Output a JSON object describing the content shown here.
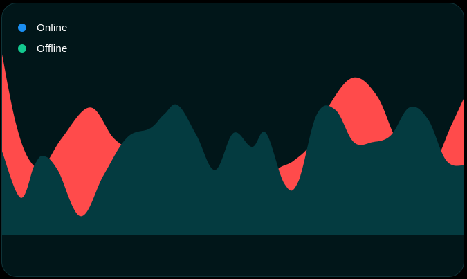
{
  "legend": [
    {
      "label": "Online",
      "color": "#1b8ff2"
    },
    {
      "label": "Offline",
      "color": "#13c98f"
    }
  ],
  "colors": {
    "card_bg": "#011619",
    "front_area": "#043b40",
    "back_area": "#ff4b4b"
  },
  "chart_data": {
    "type": "area",
    "grid": false,
    "legend_position": "top-left",
    "ylim": [
      0,
      100
    ],
    "series": [
      {
        "color": "#ff4b4b",
        "points": [
          [
            0,
            78
          ],
          [
            3,
            48
          ],
          [
            6,
            32
          ],
          [
            9,
            30
          ],
          [
            13,
            42
          ],
          [
            19,
            55
          ],
          [
            24,
            42
          ],
          [
            28,
            36
          ],
          [
            32,
            28
          ],
          [
            36,
            26
          ],
          [
            40,
            23
          ],
          [
            44,
            18
          ],
          [
            48,
            10
          ],
          [
            52,
            16
          ],
          [
            57,
            24
          ],
          [
            60,
            29
          ],
          [
            63,
            32
          ],
          [
            67,
            40
          ],
          [
            71,
            57
          ],
          [
            76,
            68
          ],
          [
            81,
            60
          ],
          [
            85,
            42
          ],
          [
            89,
            32
          ],
          [
            93,
            30
          ],
          [
            97,
            47
          ],
          [
            100,
            60
          ]
        ]
      },
      {
        "color": "#043b40",
        "points": [
          [
            0,
            36
          ],
          [
            4,
            16
          ],
          [
            7,
            30
          ],
          [
            9,
            34
          ],
          [
            12,
            28
          ],
          [
            17,
            8
          ],
          [
            22,
            26
          ],
          [
            27,
            42
          ],
          [
            32,
            46
          ],
          [
            35,
            52
          ],
          [
            38,
            56
          ],
          [
            42,
            43
          ],
          [
            46,
            28
          ],
          [
            50,
            44
          ],
          [
            54,
            38
          ],
          [
            57,
            44
          ],
          [
            61,
            22
          ],
          [
            64,
            23
          ],
          [
            68,
            52
          ],
          [
            72,
            54
          ],
          [
            76,
            40
          ],
          [
            80,
            40
          ],
          [
            84,
            43
          ],
          [
            88,
            55
          ],
          [
            92,
            50
          ],
          [
            96,
            32
          ],
          [
            100,
            30
          ]
        ]
      }
    ]
  }
}
